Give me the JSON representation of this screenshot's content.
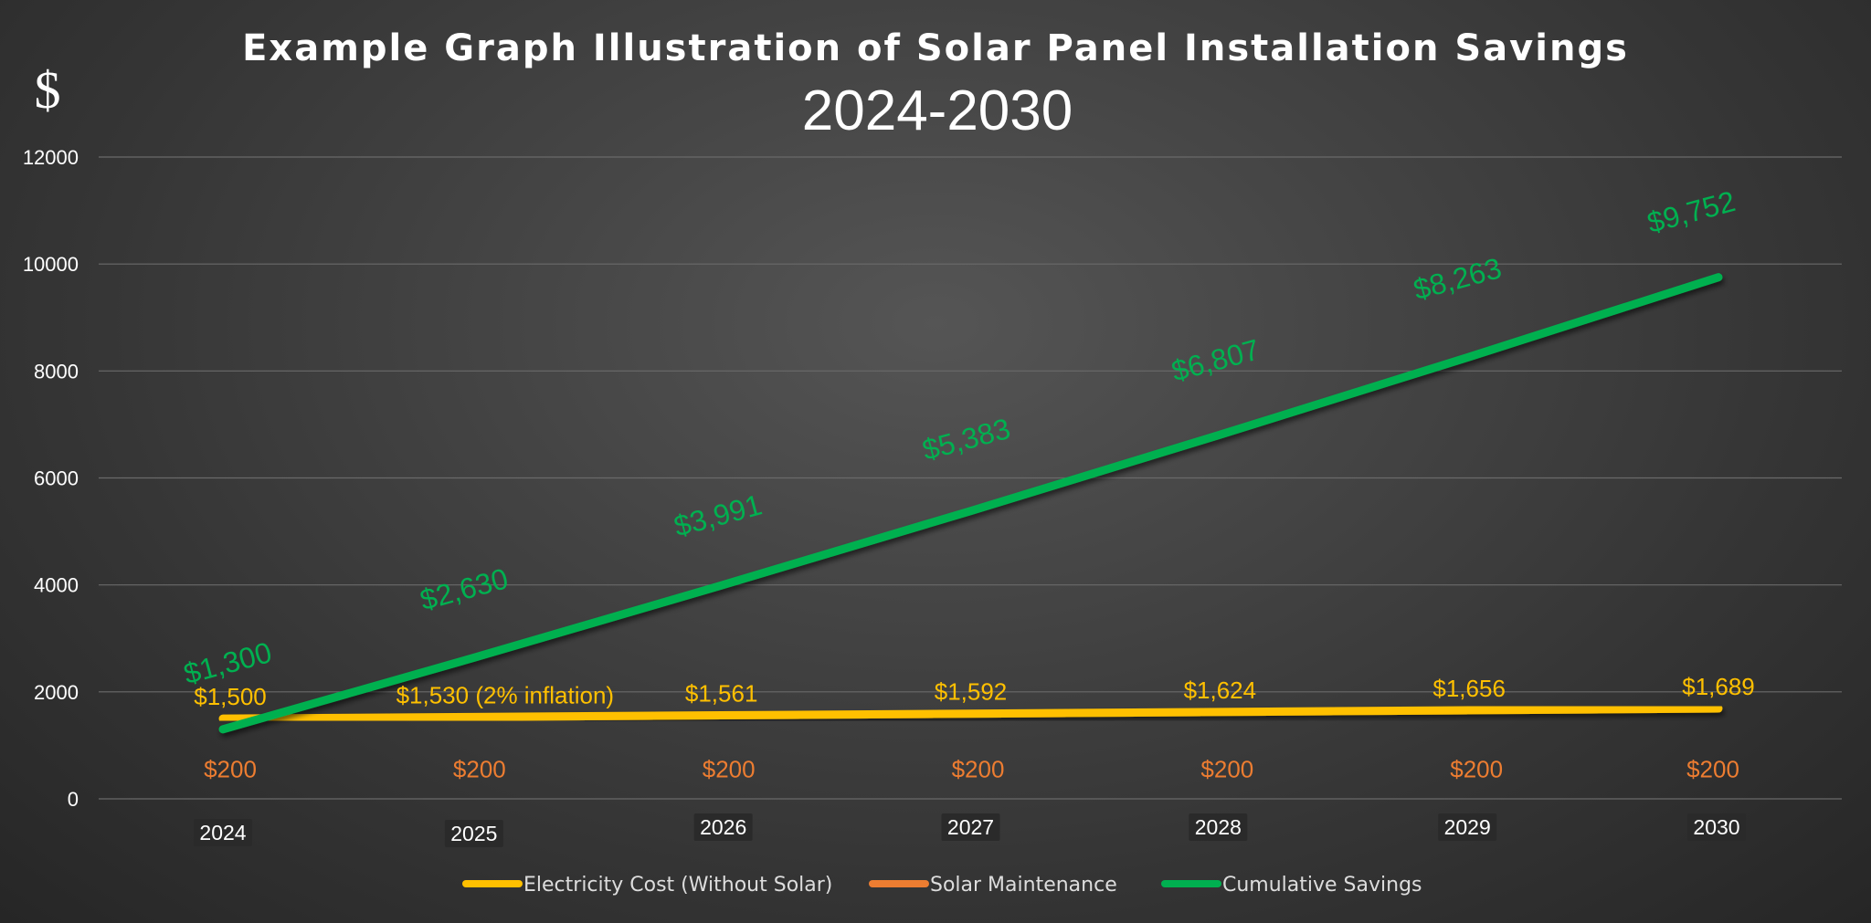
{
  "chart_data": {
    "type": "line",
    "title": "Example Graph Illustration of Solar Panel Installation Savings",
    "subtitle": "2024-2030",
    "ylabel": "$",
    "xlabel": "",
    "ylim": [
      0,
      12000
    ],
    "y_ticks": [
      0,
      2000,
      4000,
      6000,
      8000,
      10000,
      12000
    ],
    "y_tick_labels": [
      "0",
      "2000",
      "4000",
      "6000",
      "8000",
      "10000",
      "12000"
    ],
    "grid": true,
    "legend_position": "bottom",
    "categories": [
      "2024",
      "2025",
      "2026",
      "2027",
      "2028",
      "2029",
      "2030"
    ],
    "series": [
      {
        "name": "Electricity Cost (Without Solar)",
        "color": "#ffc000",
        "values": [
          1500,
          1530,
          1561,
          1592,
          1624,
          1656,
          1689
        ],
        "labels": [
          "$1,500",
          "$1,530 (2% inflation)",
          "$1,561",
          "$1,592",
          "$1,624",
          "$1,656",
          "$1,689"
        ]
      },
      {
        "name": "Solar Maintenance",
        "color": "#ed7d31",
        "values": [
          200,
          200,
          200,
          200,
          200,
          200,
          200
        ],
        "labels": [
          "$200",
          "$200",
          "$200",
          "$200",
          "$200",
          "$200",
          "$200"
        ]
      },
      {
        "name": "Cumulative Savings",
        "color": "#00b050",
        "values": [
          1300,
          2630,
          3991,
          5383,
          6807,
          8263,
          9752
        ],
        "labels": [
          "$1,300",
          "$2,630",
          "$3,991",
          "$5,383",
          "$6,807",
          "$8,263",
          "$9,752"
        ]
      }
    ]
  }
}
